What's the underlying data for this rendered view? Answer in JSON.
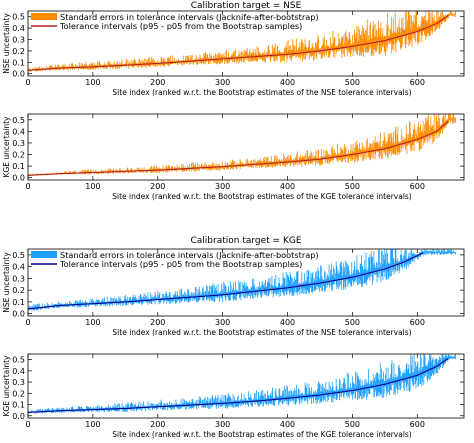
{
  "figure": {
    "colors": {
      "orange": "#ff8c00",
      "orange_line": "#b22222",
      "blue": "#1ea0ff",
      "blue_line": "#00008b"
    }
  },
  "chart_data": [
    {
      "type": "line",
      "title": "Calibration target = NSE",
      "ylabel": "NSE uncertainty",
      "xlabel": "Site index (ranked w.r.t. the Bootstrap estimates of the NSE tolerance intervals)",
      "xlim": [
        0,
        672
      ],
      "ylim": [
        -0.02,
        0.55
      ],
      "xticks": [
        0,
        100,
        200,
        300,
        400,
        500,
        600
      ],
      "yticks": [
        0.0,
        0.1,
        0.2,
        0.3,
        0.4,
        0.5
      ],
      "ytick_labels": [
        "0.0",
        "0.1",
        "0.2",
        "0.3",
        "0.4",
        "0.5"
      ],
      "grid": false,
      "legend_position": "top-left",
      "series": [
        {
          "name": "Standard errors in tolerance intervals (Jacknife-after-bootstrap)",
          "kind": "bars",
          "color": "#ff8c00",
          "x": [
            0,
            50,
            100,
            150,
            200,
            250,
            300,
            350,
            400,
            450,
            500,
            550,
            600,
            640
          ],
          "values": [
            0.05,
            0.08,
            0.1,
            0.12,
            0.14,
            0.16,
            0.2,
            0.22,
            0.28,
            0.32,
            0.38,
            0.5,
            0.55,
            0.55
          ]
        },
        {
          "name": "Tolerance intervals (p95 - p05 from the Bootstrap samples)",
          "kind": "line",
          "color": "#b22222",
          "x": [
            0,
            50,
            100,
            150,
            200,
            250,
            300,
            350,
            400,
            450,
            500,
            550,
            600,
            630,
            650
          ],
          "values": [
            0.03,
            0.05,
            0.06,
            0.075,
            0.09,
            0.11,
            0.13,
            0.15,
            0.17,
            0.2,
            0.24,
            0.29,
            0.37,
            0.44,
            0.52
          ]
        }
      ]
    },
    {
      "type": "line",
      "title": "",
      "ylabel": "KGE uncertainty",
      "xlabel": "Site index (ranked w.r.t. the Bootstrap estimates of the KGE tolerance intervals)",
      "xlim": [
        0,
        672
      ],
      "ylim": [
        -0.02,
        0.55
      ],
      "xticks": [
        0,
        100,
        200,
        300,
        400,
        500,
        600
      ],
      "yticks": [
        0.0,
        0.1,
        0.2,
        0.3,
        0.4,
        0.5
      ],
      "ytick_labels": [
        "0.0",
        "0.1",
        "0.2",
        "0.3",
        "0.4",
        "0.5"
      ],
      "grid": false,
      "series": [
        {
          "name": "Standard errors in tolerance intervals (Jacknife-after-bootstrap)",
          "kind": "bars",
          "color": "#ff8c00",
          "x": [
            0,
            50,
            100,
            150,
            200,
            250,
            300,
            350,
            400,
            450,
            500,
            550,
            600,
            640
          ],
          "values": [
            0.03,
            0.05,
            0.07,
            0.08,
            0.1,
            0.12,
            0.14,
            0.16,
            0.2,
            0.24,
            0.3,
            0.38,
            0.48,
            0.55
          ]
        },
        {
          "name": "Tolerance intervals (p95 - p05 from the Bootstrap samples)",
          "kind": "line",
          "color": "#b22222",
          "x": [
            0,
            50,
            100,
            150,
            200,
            250,
            300,
            350,
            400,
            450,
            500,
            550,
            600,
            630,
            650
          ],
          "values": [
            0.02,
            0.035,
            0.045,
            0.055,
            0.065,
            0.08,
            0.095,
            0.115,
            0.135,
            0.16,
            0.2,
            0.25,
            0.33,
            0.4,
            0.5
          ]
        }
      ]
    },
    {
      "type": "line",
      "title": "Calibration target = KGE",
      "ylabel": "NSE uncertainty",
      "xlabel": "Site index (ranked w.r.t. the Bootstrap estimates of the NSE tolerance intervals)",
      "xlim": [
        0,
        672
      ],
      "ylim": [
        -0.02,
        0.55
      ],
      "xticks": [
        0,
        100,
        200,
        300,
        400,
        500,
        600
      ],
      "yticks": [
        0.0,
        0.1,
        0.2,
        0.3,
        0.4,
        0.5
      ],
      "ytick_labels": [
        "0.0",
        "0.1",
        "0.2",
        "0.3",
        "0.4",
        "0.5"
      ],
      "grid": false,
      "legend_position": "top-left",
      "series": [
        {
          "name": "Standard errors in tolerance intervals (Jacknife-after-bootstrap)",
          "kind": "bars",
          "color": "#1ea0ff",
          "x": [
            0,
            50,
            100,
            150,
            200,
            250,
            300,
            350,
            400,
            450,
            500,
            550,
            600,
            640
          ],
          "values": [
            0.07,
            0.1,
            0.13,
            0.15,
            0.18,
            0.21,
            0.25,
            0.28,
            0.33,
            0.38,
            0.45,
            0.55,
            0.55,
            0.55
          ]
        },
        {
          "name": "Tolerance intervals (p95 - p05 from the Bootstrap samples)",
          "kind": "line",
          "color": "#00008b",
          "x": [
            0,
            50,
            100,
            150,
            200,
            250,
            300,
            350,
            400,
            450,
            500,
            550,
            580,
            610
          ],
          "values": [
            0.04,
            0.07,
            0.085,
            0.1,
            0.12,
            0.14,
            0.16,
            0.19,
            0.22,
            0.26,
            0.31,
            0.38,
            0.44,
            0.52
          ]
        }
      ]
    },
    {
      "type": "line",
      "title": "",
      "ylabel": "KGE uncertainty",
      "xlabel": "Site index (ranked w.r.t. the Bootstrap estimates of the KGE tolerance intervals)",
      "xlim": [
        0,
        672
      ],
      "ylim": [
        -0.02,
        0.55
      ],
      "xticks": [
        0,
        100,
        200,
        300,
        400,
        500,
        600
      ],
      "yticks": [
        0.0,
        0.1,
        0.2,
        0.3,
        0.4,
        0.5
      ],
      "ytick_labels": [
        "0.0",
        "0.1",
        "0.2",
        "0.3",
        "0.4",
        "0.5"
      ],
      "grid": false,
      "series": [
        {
          "name": "Standard errors in tolerance intervals (Jacknife-after-bootstrap)",
          "kind": "bars",
          "color": "#1ea0ff",
          "x": [
            0,
            50,
            100,
            150,
            200,
            250,
            300,
            350,
            400,
            450,
            500,
            550,
            600,
            640
          ],
          "values": [
            0.05,
            0.07,
            0.09,
            0.11,
            0.13,
            0.15,
            0.18,
            0.21,
            0.25,
            0.3,
            0.36,
            0.46,
            0.55,
            0.55
          ]
        },
        {
          "name": "Tolerance intervals (p95 - p05 from the Bootstrap samples)",
          "kind": "line",
          "color": "#00008b",
          "x": [
            0,
            50,
            100,
            150,
            200,
            250,
            300,
            350,
            400,
            450,
            500,
            550,
            600,
            630,
            650
          ],
          "values": [
            0.03,
            0.045,
            0.055,
            0.065,
            0.08,
            0.095,
            0.11,
            0.13,
            0.155,
            0.185,
            0.225,
            0.28,
            0.36,
            0.44,
            0.52
          ]
        }
      ]
    }
  ]
}
